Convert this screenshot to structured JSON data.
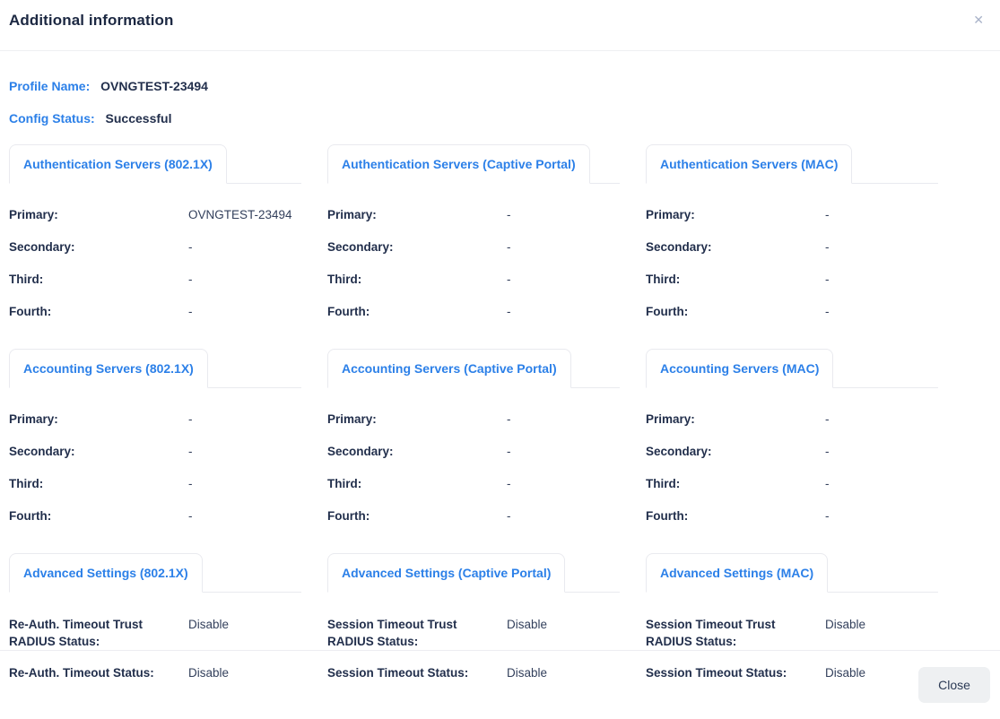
{
  "header": {
    "title": "Additional information",
    "close_icon": "✕"
  },
  "info": {
    "profile_name": {
      "label": "Profile Name:",
      "value": "OVNGTEST-23494"
    },
    "config_status": {
      "label": "Config Status:",
      "value": "Successful"
    }
  },
  "sections": [
    {
      "name": "authentication-servers",
      "columns": [
        {
          "tab": "Authentication Servers (802.1X)",
          "rows": [
            {
              "label": "Primary:",
              "value": "OVNGTEST-23494"
            },
            {
              "label": "Secondary:",
              "value": "-"
            },
            {
              "label": "Third:",
              "value": "-"
            },
            {
              "label": "Fourth:",
              "value": "-"
            }
          ]
        },
        {
          "tab": "Authentication Servers (Captive Portal)",
          "rows": [
            {
              "label": "Primary:",
              "value": "-"
            },
            {
              "label": "Secondary:",
              "value": "-"
            },
            {
              "label": "Third:",
              "value": "-"
            },
            {
              "label": "Fourth:",
              "value": "-"
            }
          ]
        },
        {
          "tab": "Authentication Servers (MAC)",
          "rows": [
            {
              "label": "Primary:",
              "value": "-"
            },
            {
              "label": "Secondary:",
              "value": "-"
            },
            {
              "label": "Third:",
              "value": "-"
            },
            {
              "label": "Fourth:",
              "value": "-"
            }
          ]
        }
      ]
    },
    {
      "name": "accounting-servers",
      "columns": [
        {
          "tab": "Accounting Servers (802.1X)",
          "rows": [
            {
              "label": "Primary:",
              "value": "-"
            },
            {
              "label": "Secondary:",
              "value": "-"
            },
            {
              "label": "Third:",
              "value": "-"
            },
            {
              "label": "Fourth:",
              "value": "-"
            }
          ]
        },
        {
          "tab": "Accounting Servers (Captive Portal)",
          "rows": [
            {
              "label": "Primary:",
              "value": "-"
            },
            {
              "label": "Secondary:",
              "value": "-"
            },
            {
              "label": "Third:",
              "value": "-"
            },
            {
              "label": "Fourth:",
              "value": "-"
            }
          ]
        },
        {
          "tab": "Accounting Servers (MAC)",
          "rows": [
            {
              "label": "Primary:",
              "value": "-"
            },
            {
              "label": "Secondary:",
              "value": "-"
            },
            {
              "label": "Third:",
              "value": "-"
            },
            {
              "label": "Fourth:",
              "value": "-"
            }
          ]
        }
      ]
    },
    {
      "name": "advanced-settings",
      "columns": [
        {
          "tab": "Advanced Settings (802.1X)",
          "rows": [
            {
              "label": "Re-Auth. Timeout Trust RADIUS Status:",
              "value": "Disable"
            },
            {
              "label": "Re-Auth. Timeout Status:",
              "value": "Disable"
            }
          ]
        },
        {
          "tab": "Advanced Settings (Captive Portal)",
          "rows": [
            {
              "label": "Session Timeout Trust RADIUS Status:",
              "value": "Disable"
            },
            {
              "label": "Session Timeout Status:",
              "value": "Disable"
            }
          ]
        },
        {
          "tab": "Advanced Settings (MAC)",
          "rows": [
            {
              "label": "Session Timeout Trust RADIUS Status:",
              "value": "Disable"
            },
            {
              "label": "Session Timeout Status:",
              "value": "Disable"
            }
          ]
        }
      ]
    }
  ],
  "footer": {
    "close_label": "Close"
  },
  "colors": {
    "accent_blue": "#2c80e8",
    "title_dark": "#1c2842",
    "label_dark": "#222f4c",
    "border_light": "#e9eaef",
    "close_button_bg": "#eef0f2"
  }
}
